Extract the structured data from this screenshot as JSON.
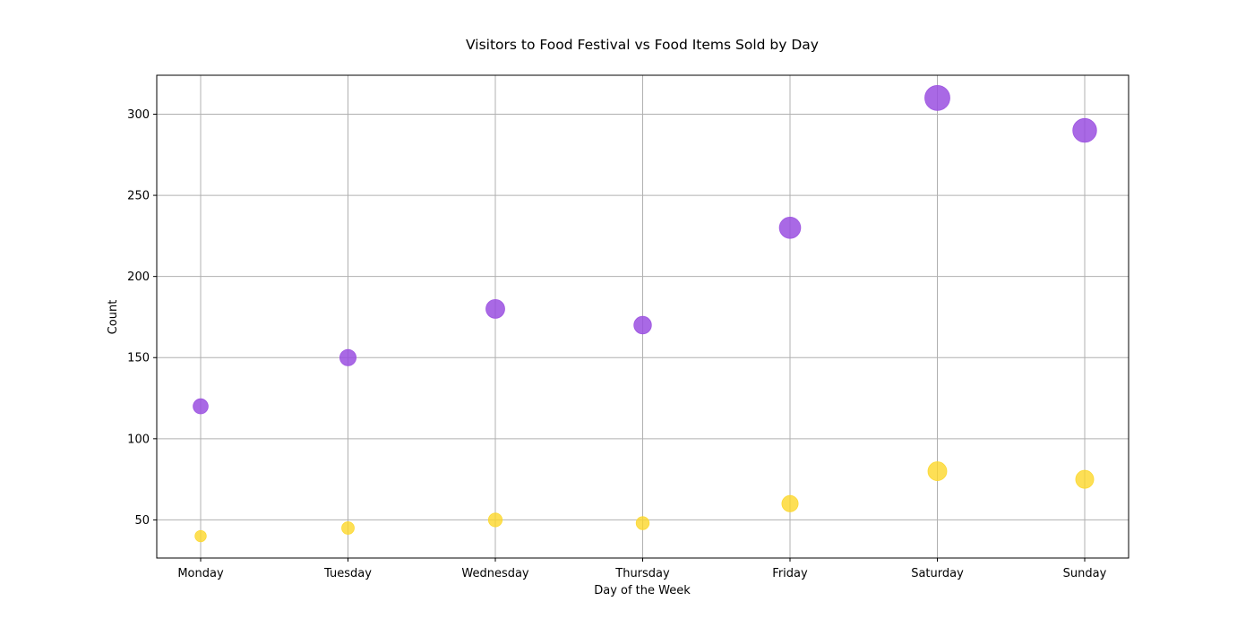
{
  "chart_data": {
    "type": "scatter",
    "title": "Visitors to Food Festival vs Food Items Sold by Day",
    "xlabel": "Day of the Week",
    "ylabel": "Count",
    "categories": [
      "Monday",
      "Tuesday",
      "Wednesday",
      "Thursday",
      "Friday",
      "Saturday",
      "Sunday"
    ],
    "ylim": [
      26.5,
      324
    ],
    "yticks": [
      50,
      100,
      150,
      200,
      250,
      300
    ],
    "grid": true,
    "series": [
      {
        "color": "#9a4fe0",
        "values": [
          120,
          150,
          180,
          170,
          230,
          310,
          290
        ],
        "marker_scale": [
          0.6,
          0.65,
          0.75,
          0.7,
          0.85,
          1.0,
          0.95
        ]
      },
      {
        "color": "#fcd72a",
        "values": [
          40,
          45,
          50,
          48,
          60,
          80,
          75
        ],
        "marker_scale": [
          0.45,
          0.5,
          0.55,
          0.52,
          0.65,
          0.75,
          0.72
        ]
      }
    ]
  }
}
